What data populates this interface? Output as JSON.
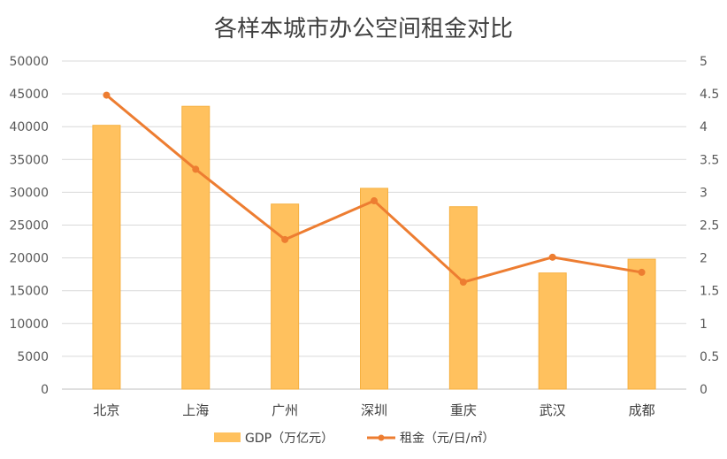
{
  "chart_data": {
    "type": "bar",
    "title": "各样本城市办公空间租金对比",
    "categories": [
      "北京",
      "上海",
      "广州",
      "深圳",
      "重庆",
      "武汉",
      "成都"
    ],
    "series": [
      {
        "name": "GDP（万亿元）",
        "type": "bar",
        "axis": "left",
        "values": [
          40200,
          43100,
          28200,
          30600,
          27800,
          17700,
          19800
        ]
      },
      {
        "name": "租金（元/日/㎡）",
        "type": "line",
        "axis": "right",
        "values": [
          4.48,
          3.35,
          2.28,
          2.87,
          1.63,
          2.01,
          1.78
        ]
      }
    ],
    "y_left": {
      "lim": [
        0,
        50000
      ],
      "ticks": [
        0,
        5000,
        10000,
        15000,
        20000,
        25000,
        30000,
        35000,
        40000,
        45000,
        50000
      ]
    },
    "y_right": {
      "lim": [
        0,
        5
      ],
      "ticks": [
        "0",
        "0.5",
        "1",
        "1.5",
        "2",
        "2.5",
        "3",
        "3.5",
        "4",
        "4.5",
        "5"
      ]
    },
    "grid": true,
    "legend": "bottom",
    "colors": {
      "bar": "#FFC15E",
      "bar_edge": "#F6B040",
      "line": "#ED7D31",
      "grid": "#D9D9D9"
    }
  }
}
